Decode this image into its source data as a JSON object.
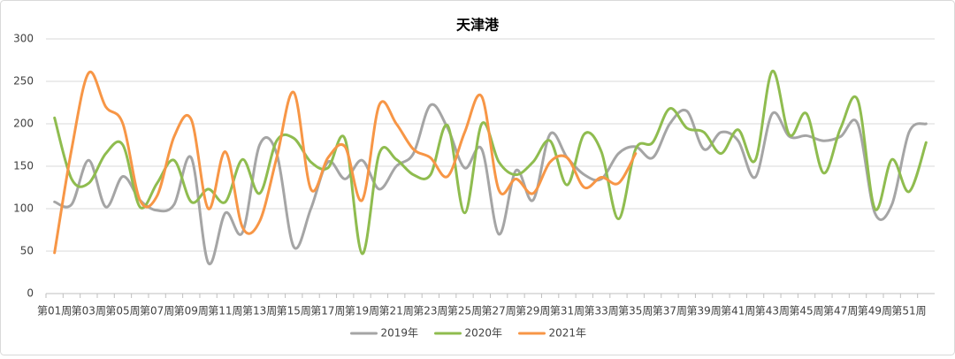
{
  "chart_data": {
    "type": "line",
    "title": "天津港",
    "categories": [
      "第01周",
      null,
      "第03周",
      null,
      "第05周",
      null,
      "第07周",
      null,
      "第09周",
      null,
      "第11周",
      null,
      "第13周",
      null,
      "第15周",
      null,
      "第17周",
      null,
      "第19周",
      null,
      "第21周",
      null,
      "第23周",
      null,
      "第25周",
      null,
      "第27周",
      null,
      "第29周",
      null,
      "第31周",
      null,
      "第33周",
      null,
      "第35周",
      null,
      "第37周",
      null,
      "第39周",
      null,
      "第41周",
      null,
      "第43周",
      null,
      "第45周",
      null,
      "第47周",
      null,
      "第49周",
      null,
      "第51周",
      null
    ],
    "series": [
      {
        "name": "2019年",
        "color": "#a5a5a5",
        "values": [
          108,
          105,
          157,
          102,
          138,
          110,
          98,
          105,
          160,
          36,
          95,
          72,
          175,
          165,
          55,
          100,
          155,
          135,
          157,
          123,
          150,
          165,
          222,
          195,
          148,
          170,
          70,
          145,
          110,
          188,
          160,
          140,
          135,
          165,
          173,
          160,
          200,
          215,
          170,
          190,
          180,
          137,
          212,
          185,
          186,
          180,
          185,
          200,
          95,
          105,
          190,
          200
        ]
      },
      {
        "name": "2020年",
        "color": "#8fbc4f",
        "values": [
          207,
          135,
          130,
          165,
          175,
          102,
          130,
          157,
          108,
          123,
          108,
          158,
          118,
          180,
          183,
          155,
          148,
          182,
          47,
          165,
          158,
          140,
          140,
          198,
          95,
          200,
          155,
          140,
          155,
          180,
          128,
          188,
          167,
          88,
          170,
          178,
          218,
          195,
          190,
          165,
          193,
          157,
          262,
          187,
          212,
          142,
          195,
          228,
          100,
          158,
          120,
          178
        ]
      },
      {
        "name": "2021年",
        "color": "#f79646",
        "values": [
          48,
          170,
          260,
          220,
          200,
          110,
          115,
          185,
          205,
          100,
          167,
          78,
          85,
          160,
          237,
          123,
          160,
          173,
          110,
          222,
          200,
          170,
          160,
          138,
          190,
          232,
          122,
          135,
          118,
          155,
          160,
          125,
          137,
          130,
          165,
          null,
          null,
          null,
          null,
          null,
          null,
          null,
          null,
          null,
          null,
          null,
          null,
          null,
          null,
          null,
          null,
          null
        ]
      }
    ],
    "ylim": [
      0,
      300
    ],
    "yticks": [
      0,
      50,
      100,
      150,
      200,
      250,
      300
    ],
    "grid": true,
    "legend": "bottom"
  }
}
